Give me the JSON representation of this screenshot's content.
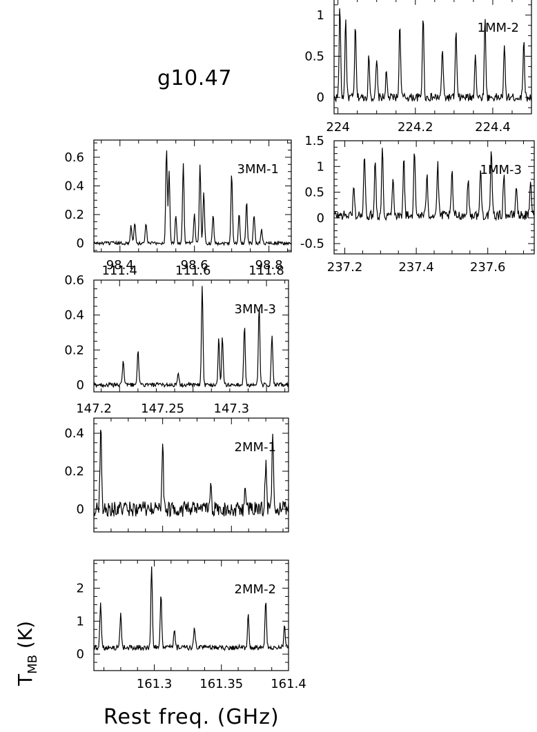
{
  "figure": {
    "source": "g10.47",
    "xlabel": "Rest freq. (GHz)",
    "ylabel_main": "T",
    "ylabel_sub": "MB",
    "ylabel_unit": " (K)"
  },
  "chart_data": [
    {
      "type": "line",
      "panel": "1MM-2",
      "xlim": [
        223.99,
        224.5
      ],
      "ylim": [
        -0.2,
        1.2
      ],
      "xticks": [
        "224",
        "224.2",
        "224.4"
      ],
      "yticks": [
        "0",
        "0.5",
        "1"
      ],
      "xtick_values": [
        224.0,
        224.2,
        224.4
      ],
      "ytick_values": [
        0,
        0.5,
        1
      ],
      "xticks_position": "bottom",
      "yticks_position": "left",
      "noise": 0.05,
      "baseline": 0.0,
      "peaks": [
        [
          224.005,
          1.1
        ],
        [
          224.02,
          0.95
        ],
        [
          224.045,
          0.85
        ],
        [
          224.08,
          0.5
        ],
        [
          224.1,
          0.45
        ],
        [
          224.125,
          0.3
        ],
        [
          224.16,
          0.9
        ],
        [
          224.22,
          1.0
        ],
        [
          224.27,
          0.6
        ],
        [
          224.305,
          0.8
        ],
        [
          224.355,
          0.55
        ],
        [
          224.38,
          0.95
        ],
        [
          224.43,
          0.6
        ],
        [
          224.48,
          0.7
        ]
      ]
    },
    {
      "type": "line",
      "panel": "1MM-3",
      "xlim": [
        237.17,
        237.73
      ],
      "ylim": [
        -0.7,
        1.5
      ],
      "xticks": [
        "237.2",
        "237.4",
        "237.6"
      ],
      "yticks": [
        "-0.5",
        "0",
        "0.5",
        "1",
        "1.5"
      ],
      "xtick_values": [
        237.2,
        237.4,
        237.6
      ],
      "ytick_values": [
        -0.5,
        0,
        0.5,
        1,
        1.5
      ],
      "xticks_position": "bottom",
      "yticks_position": "left",
      "noise": 0.09,
      "baseline": 0.05,
      "peaks": [
        [
          237.225,
          0.55
        ],
        [
          237.255,
          1.2
        ],
        [
          237.285,
          1.1
        ],
        [
          237.305,
          1.3
        ],
        [
          237.335,
          0.8
        ],
        [
          237.365,
          1.1
        ],
        [
          237.395,
          1.25
        ],
        [
          237.43,
          0.85
        ],
        [
          237.46,
          1.0
        ],
        [
          237.5,
          0.85
        ],
        [
          237.545,
          0.7
        ],
        [
          237.58,
          0.9
        ],
        [
          237.61,
          1.25
        ],
        [
          237.645,
          0.8
        ],
        [
          237.68,
          0.6
        ],
        [
          237.72,
          0.7
        ]
      ]
    },
    {
      "type": "line",
      "panel": "3MM-1",
      "xlim": [
        98.33,
        98.86
      ],
      "ylim": [
        -0.06,
        0.72
      ],
      "xticks": [
        "98.4",
        "98.6",
        "98.8"
      ],
      "yticks": [
        "0",
        "0.2",
        "0.4",
        "0.6"
      ],
      "xtick_values": [
        98.4,
        98.6,
        98.8
      ],
      "ytick_values": [
        0,
        0.2,
        0.4,
        0.6
      ],
      "xticks_position": "bottom",
      "yticks_position": "left",
      "noise": 0.012,
      "baseline": 0.0,
      "peaks": [
        [
          98.43,
          0.12
        ],
        [
          98.44,
          0.15
        ],
        [
          98.47,
          0.14
        ],
        [
          98.525,
          0.67
        ],
        [
          98.532,
          0.5
        ],
        [
          98.55,
          0.2
        ],
        [
          98.57,
          0.55
        ],
        [
          98.6,
          0.2
        ],
        [
          98.615,
          0.55
        ],
        [
          98.625,
          0.35
        ],
        [
          98.65,
          0.2
        ],
        [
          98.7,
          0.49
        ],
        [
          98.72,
          0.2
        ],
        [
          98.74,
          0.3
        ],
        [
          98.76,
          0.2
        ],
        [
          98.78,
          0.1
        ]
      ]
    },
    {
      "type": "line",
      "panel": "3MM-3",
      "xlim": [
        111.33,
        111.86
      ],
      "ylim": [
        -0.04,
        0.6
      ],
      "xticks": [
        "111.4",
        "111.6",
        "111.8"
      ],
      "yticks": [
        "0",
        "0.2",
        "0.4",
        "0.6"
      ],
      "xtick_values": [
        111.4,
        111.6,
        111.8
      ],
      "ytick_values": [
        0,
        0.2,
        0.4,
        0.6
      ],
      "xticks_position": "top",
      "yticks_position": "left",
      "noise": 0.012,
      "baseline": 0.0,
      "peaks": [
        [
          111.41,
          0.15
        ],
        [
          111.45,
          0.2
        ],
        [
          111.56,
          0.06
        ],
        [
          111.625,
          0.58
        ],
        [
          111.67,
          0.27
        ],
        [
          111.68,
          0.28
        ],
        [
          111.74,
          0.34
        ],
        [
          111.78,
          0.45
        ],
        [
          111.815,
          0.29
        ]
      ]
    },
    {
      "type": "line",
      "panel": "2MM-1",
      "xlim": [
        147.2,
        147.3415
      ],
      "ylim": [
        -0.12,
        0.48
      ],
      "xticks": [
        "147.2",
        "147.25",
        "147.3"
      ],
      "yticks": [
        "0",
        "0.2",
        "0.4"
      ],
      "xtick_values": [
        147.2,
        147.25,
        147.3
      ],
      "ytick_values": [
        0,
        0.2,
        0.4
      ],
      "xticks_position": "top",
      "yticks_position": "left",
      "noise": 0.04,
      "baseline": 0.0,
      "peaks": [
        [
          147.205,
          0.45
        ],
        [
          147.25,
          0.37
        ],
        [
          147.285,
          0.12
        ],
        [
          147.31,
          0.12
        ],
        [
          147.325,
          0.25
        ],
        [
          147.33,
          0.4
        ]
      ]
    },
    {
      "type": "line",
      "panel": "2MM-2",
      "xlim": [
        161.255,
        161.4
      ],
      "ylim": [
        -0.5,
        2.85
      ],
      "xticks": [
        "161.3",
        "161.35",
        "161.4"
      ],
      "yticks": [
        "0",
        "1",
        "2"
      ],
      "xtick_values": [
        161.3,
        161.35,
        161.4
      ],
      "ytick_values": [
        0,
        1,
        2
      ],
      "xticks_position": "bottom",
      "yticks_position": "left",
      "noise": 0.08,
      "baseline": 0.2,
      "peaks": [
        [
          161.26,
          1.4
        ],
        [
          161.275,
          1.1
        ],
        [
          161.298,
          2.5
        ],
        [
          161.305,
          1.6
        ],
        [
          161.315,
          0.5
        ],
        [
          161.33,
          0.6
        ],
        [
          161.37,
          1.0
        ],
        [
          161.383,
          1.4
        ],
        [
          161.397,
          0.7
        ]
      ]
    }
  ]
}
